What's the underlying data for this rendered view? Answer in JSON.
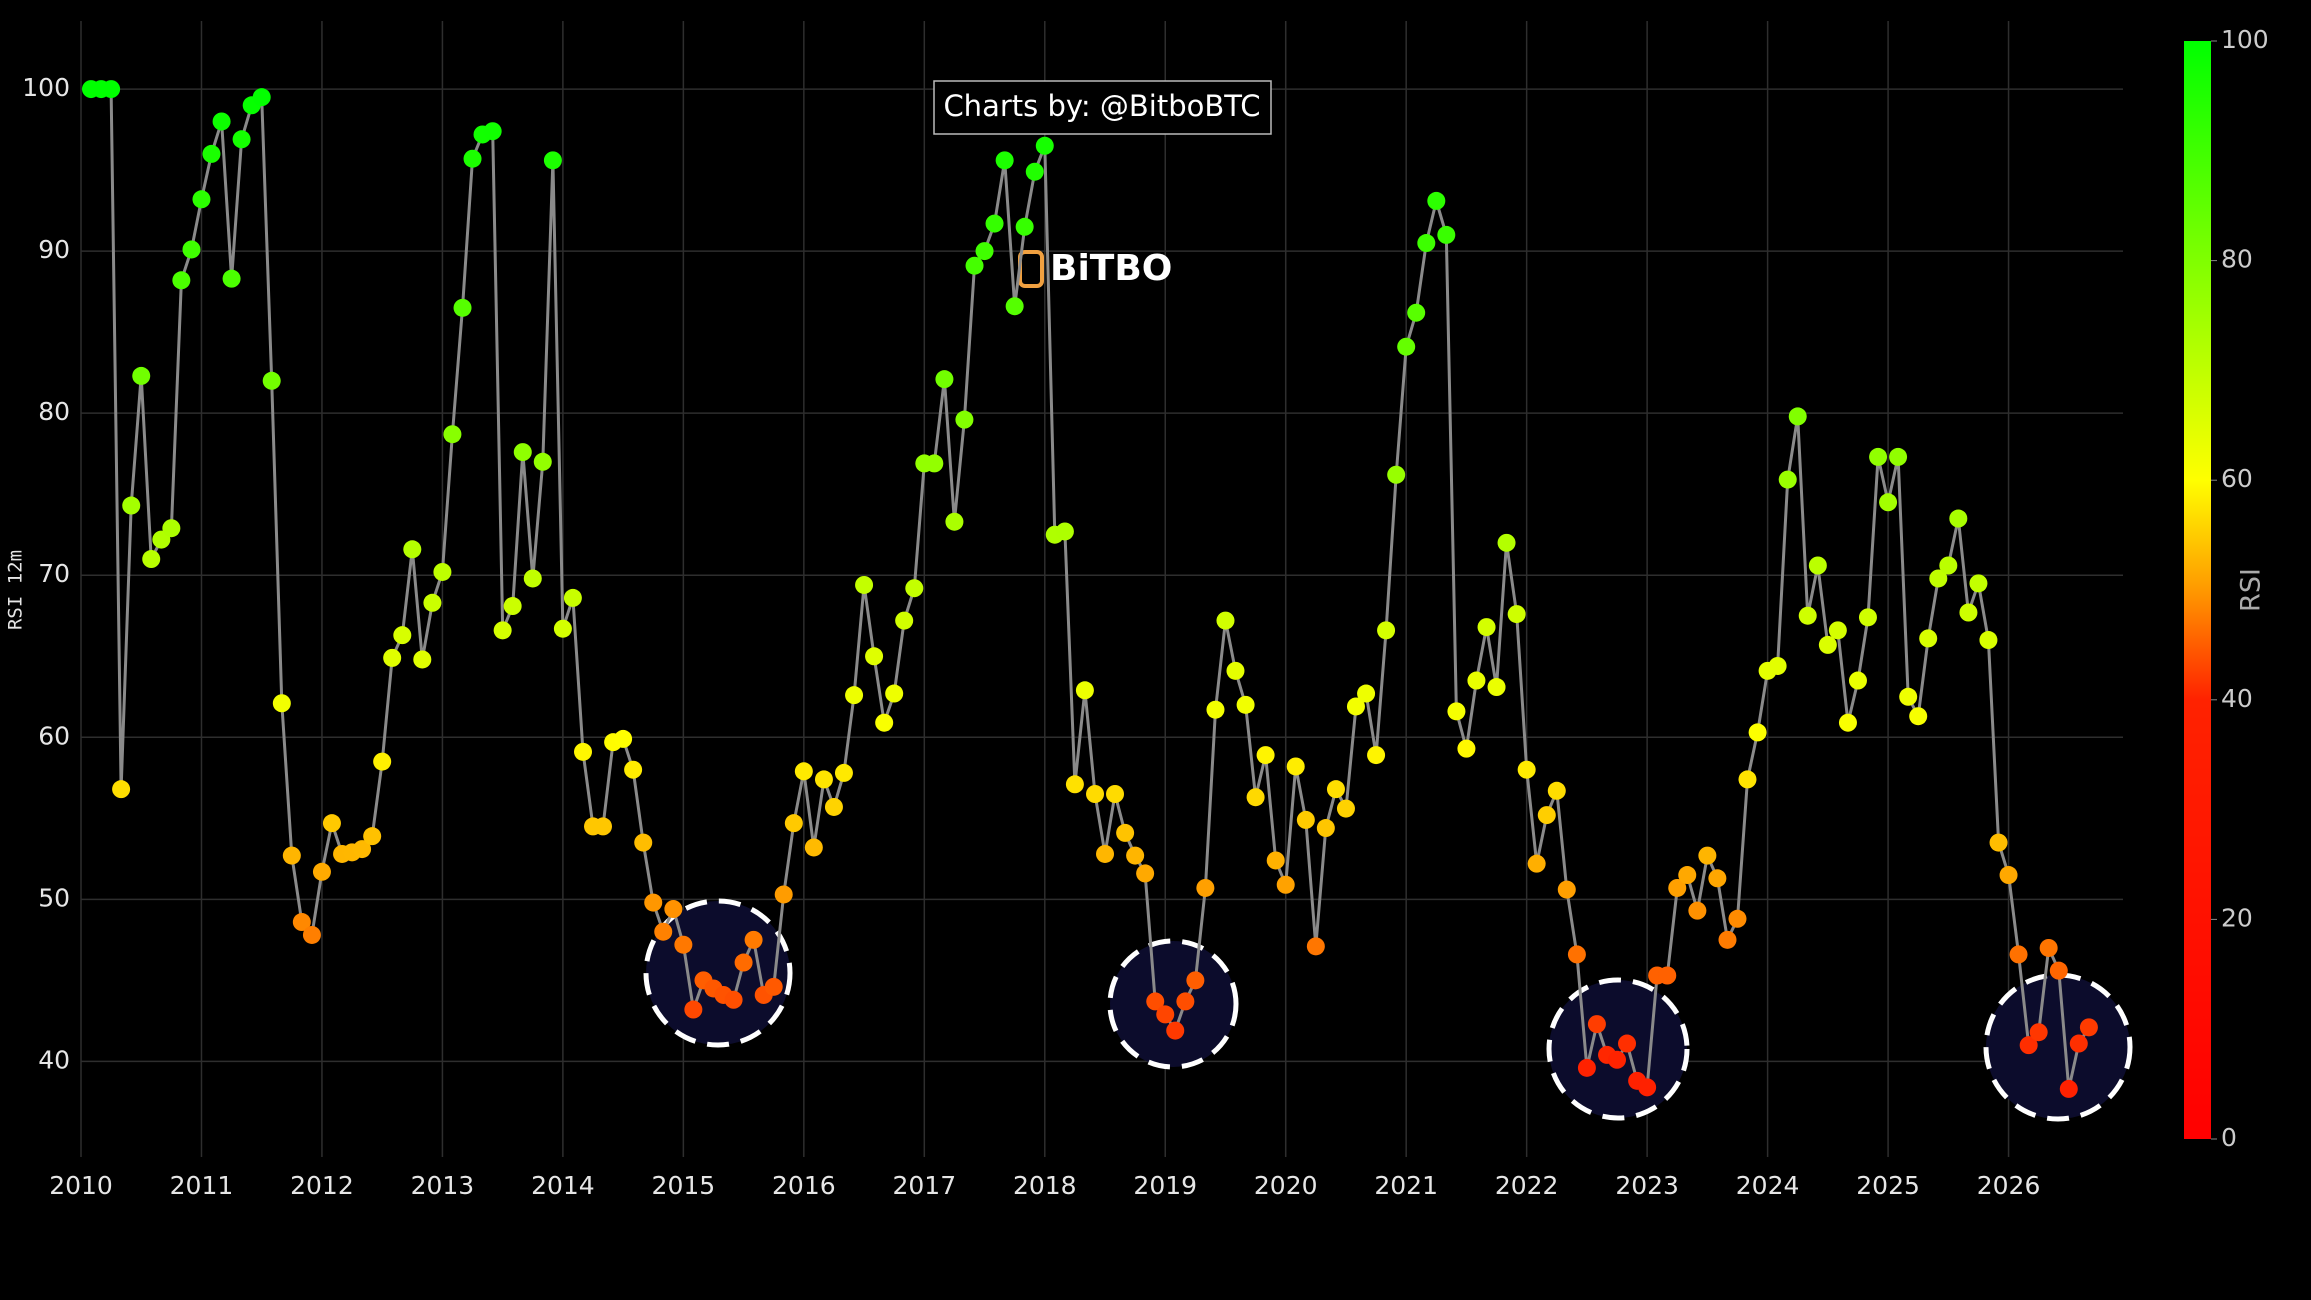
{
  "chart_data": {
    "type": "scatter-line",
    "watermark": "Charts by: @BitboBTC",
    "logo": "BiTBO",
    "y_label": "RSI 12m",
    "x": [
      2010.083,
      2010.167,
      2010.25,
      2010.333,
      2010.417,
      2010.5,
      2010.583,
      2010.667,
      2010.75,
      2010.833,
      2010.917,
      2011,
      2011.083,
      2011.167,
      2011.25,
      2011.333,
      2011.417,
      2011.5,
      2011.583,
      2011.667,
      2011.75,
      2011.833,
      2011.917,
      2012,
      2012.083,
      2012.167,
      2012.25,
      2012.333,
      2012.417,
      2012.5,
      2012.583,
      2012.667,
      2012.75,
      2012.833,
      2012.917,
      2013,
      2013.083,
      2013.167,
      2013.25,
      2013.333,
      2013.417,
      2013.5,
      2013.583,
      2013.667,
      2013.75,
      2013.833,
      2013.917,
      2014,
      2014.083,
      2014.167,
      2014.25,
      2014.333,
      2014.417,
      2014.5,
      2014.583,
      2014.667,
      2014.75,
      2014.833,
      2014.917,
      2015,
      2015.083,
      2015.167,
      2015.25,
      2015.333,
      2015.417,
      2015.5,
      2015.583,
      2015.667,
      2015.75,
      2015.833,
      2015.917,
      2016,
      2016.083,
      2016.167,
      2016.25,
      2016.333,
      2016.417,
      2016.5,
      2016.583,
      2016.667,
      2016.75,
      2016.833,
      2016.917,
      2017,
      2017.083,
      2017.167,
      2017.25,
      2017.333,
      2017.417,
      2017.5,
      2017.583,
      2017.667,
      2017.75,
      2017.833,
      2017.917,
      2018,
      2018.083,
      2018.167,
      2018.25,
      2018.333,
      2018.417,
      2018.5,
      2018.583,
      2018.667,
      2018.75,
      2018.833,
      2018.917,
      2019,
      2019.083,
      2019.167,
      2019.25,
      2019.333,
      2019.417,
      2019.5,
      2019.583,
      2019.667,
      2019.75,
      2019.833,
      2019.917,
      2020,
      2020.083,
      2020.167,
      2020.25,
      2020.333,
      2020.417,
      2020.5,
      2020.583,
      2020.667,
      2020.75,
      2020.833,
      2020.917,
      2021,
      2021.083,
      2021.167,
      2021.25,
      2021.333,
      2021.417,
      2021.5,
      2021.583,
      2021.667,
      2021.75,
      2021.833,
      2021.917,
      2022,
      2022.083,
      2022.167,
      2022.25,
      2022.333,
      2022.417,
      2022.5,
      2022.583,
      2022.667,
      2022.75,
      2022.833,
      2022.917,
      2023,
      2023.083,
      2023.167,
      2023.25,
      2023.333,
      2023.417,
      2023.5,
      2023.583,
      2023.667,
      2023.75,
      2023.833,
      2023.917,
      2024,
      2024.083,
      2024.167,
      2024.25,
      2024.333,
      2024.417,
      2024.5,
      2024.583,
      2024.667,
      2024.75,
      2024.833,
      2024.917,
      2025,
      2025.083,
      2025.167,
      2025.25,
      2025.333,
      2025.417,
      2025.5,
      2025.583,
      2025.667,
      2025.75,
      2025.833,
      2025.917,
      2026,
      2026.083,
      2026.167,
      2026.25,
      2026.333,
      2026.417,
      2026.5,
      2026.583,
      2026.667
    ],
    "values": [
      100,
      100,
      100,
      56.8,
      74.3,
      82.3,
      71,
      72.2,
      72.9,
      88.2,
      90.1,
      93.2,
      96,
      98,
      88.3,
      96.9,
      99,
      99.5,
      82,
      62.1,
      52.7,
      48.6,
      47.8,
      51.7,
      54.7,
      52.8,
      52.9,
      53.1,
      53.9,
      58.5,
      64.9,
      66.3,
      71.6,
      64.8,
      68.3,
      70.2,
      78.7,
      86.5,
      95.7,
      97.2,
      97.4,
      66.6,
      68.1,
      77.6,
      69.8,
      77,
      95.6,
      66.7,
      68.6,
      59.1,
      54.5,
      54.5,
      59.7,
      59.9,
      58,
      53.5,
      49.8,
      48,
      49.4,
      47.2,
      43.2,
      45,
      44.5,
      44.1,
      43.8,
      46.1,
      47.5,
      44.1,
      44.6,
      50.3,
      54.7,
      57.9,
      53.2,
      57.4,
      55.7,
      57.8,
      62.6,
      69.4,
      65,
      60.9,
      62.7,
      67.2,
      69.2,
      76.9,
      76.9,
      82.1,
      73.3,
      79.6,
      89.1,
      90,
      91.7,
      95.6,
      86.6,
      91.5,
      94.9,
      96.5,
      72.5,
      72.7,
      57.1,
      62.9,
      56.5,
      52.8,
      56.5,
      54.1,
      52.7,
      51.6,
      43.7,
      42.9,
      41.9,
      43.7,
      45,
      50.7,
      61.7,
      67.2,
      64.1,
      62,
      56.3,
      58.9,
      52.4,
      50.9,
      58.2,
      54.9,
      47.1,
      54.4,
      56.8,
      55.6,
      61.9,
      62.7,
      58.9,
      66.6,
      76.2,
      84.1,
      86.2,
      90.5,
      93.1,
      91,
      61.6,
      59.3,
      63.5,
      66.8,
      63.1,
      72,
      67.6,
      58,
      52.2,
      55.2,
      56.7,
      50.6,
      46.6,
      39.6,
      42.3,
      40.4,
      40.1,
      41.1,
      38.8,
      38.4,
      45.3,
      45.3,
      50.7,
      51.5,
      49.3,
      52.7,
      51.3,
      47.5,
      48.8,
      57.4,
      60.3,
      64.1,
      64.4,
      75.9,
      79.8,
      67.5,
      70.6,
      65.7,
      66.6,
      60.9,
      63.5,
      67.4,
      77.3,
      74.5,
      77.3,
      62.5,
      61.3,
      66.1,
      69.8,
      70.6,
      73.5,
      67.7,
      69.5,
      66,
      53.5,
      51.5,
      46.6,
      41,
      41.8,
      47,
      45.6,
      38.3,
      41.1,
      42.1
    ],
    "line_color": "#8a8a8a",
    "xlim": [
      2010,
      2026.95
    ],
    "xticks": [
      2010,
      2011,
      2012,
      2013,
      2014,
      2015,
      2016,
      2017,
      2018,
      2019,
      2020,
      2021,
      2022,
      2023,
      2024,
      2025,
      2026
    ],
    "ylim": [
      34.1,
      104.2
    ],
    "yticks": [
      40,
      50,
      60,
      70,
      80,
      90,
      100
    ],
    "grid": true,
    "colorscale": [
      [
        0,
        "#ff0000"
      ],
      [
        40,
        "#ff2200"
      ],
      [
        50,
        "#ff9900"
      ],
      [
        60,
        "#ffff00"
      ],
      [
        100,
        "#00ff00"
      ]
    ],
    "colorbar": {
      "title": "RSI",
      "lim": [
        0,
        100
      ],
      "ticks": [
        0,
        20,
        40,
        60,
        80,
        100
      ]
    }
  }
}
